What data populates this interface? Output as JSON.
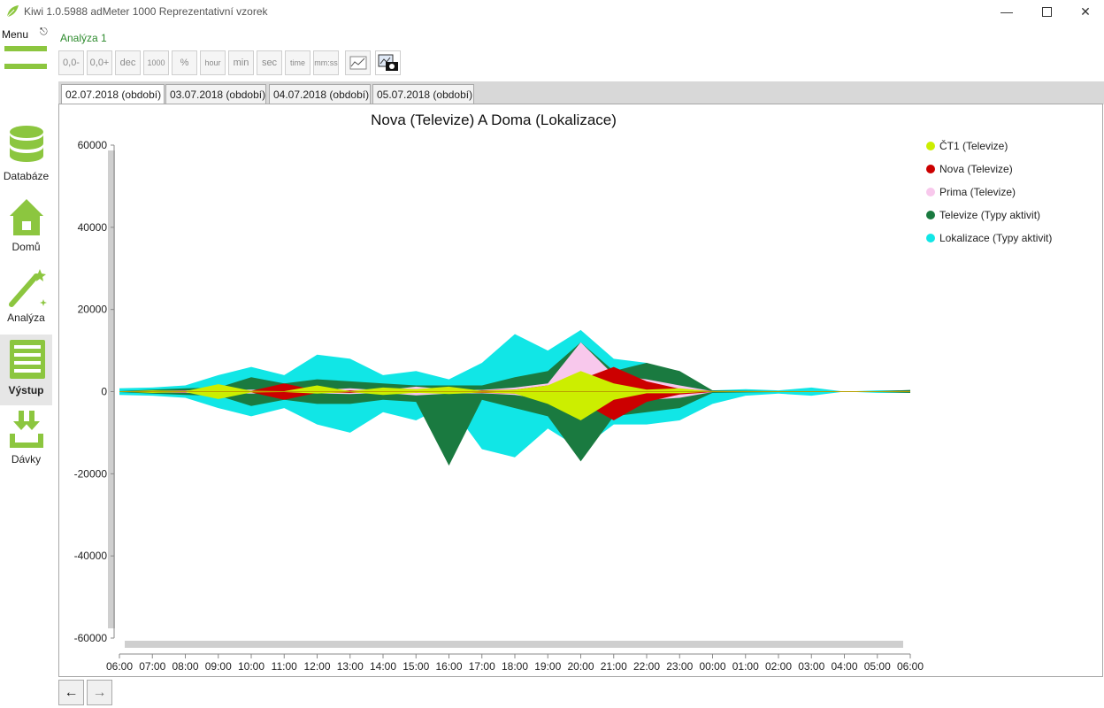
{
  "window": {
    "title": "Kiwi 1.0.5988  adMeter 1000 Reprezentativní vzorek"
  },
  "sidebar": {
    "menu_label": "Menu",
    "items": [
      {
        "label": "Databáze",
        "icon": "database-icon"
      },
      {
        "label": "Domů",
        "icon": "home-icon"
      },
      {
        "label": "Analýza",
        "icon": "magic-wand-icon"
      },
      {
        "label": "Výstup",
        "icon": "output-table-icon",
        "active": true
      },
      {
        "label": "Dávky",
        "icon": "batch-download-icon"
      }
    ],
    "accent_color": "#8cc63f"
  },
  "analysis_title": "Analýza 1",
  "toolbar": {
    "buttons": [
      "0,0-",
      "0,0+",
      "dec",
      "1000",
      "%",
      "hour",
      "min",
      "sec",
      "time",
      "mm:ss"
    ],
    "chart_settings_icon": "chart-settings-icon",
    "screenshot_icon": "camera-icon"
  },
  "tabs": [
    "02.07.2018 (období)",
    "03.07.2018 (období)",
    "04.07.2018 (období)",
    "05.07.2018 (období)"
  ],
  "bottom_nav": {
    "back": "←",
    "forward": "→"
  },
  "chart_data": {
    "type": "area",
    "title": "Nova (Televize) A Doma (Lokalizace)",
    "xlabel": "",
    "ylabel": "",
    "ylim": [
      -60000,
      60000
    ],
    "y_ticks": [
      "60000",
      "40000",
      "20000",
      "0",
      "-20000",
      "-40000",
      "-60000"
    ],
    "categories": [
      "06:00",
      "07:00",
      "08:00",
      "09:00",
      "10:00",
      "11:00",
      "12:00",
      "13:00",
      "14:00",
      "15:00",
      "16:00",
      "17:00",
      "18:00",
      "19:00",
      "20:00",
      "21:00",
      "22:00",
      "23:00",
      "00:00",
      "01:00",
      "02:00",
      "03:00",
      "04:00",
      "05:00",
      "06:00"
    ],
    "legend_position": "top-right",
    "grid": false,
    "series": [
      {
        "name": "ČT1 (Televize)",
        "color": "#ccee00",
        "upper": [
          0,
          300,
          100,
          1800,
          200,
          100,
          1500,
          100,
          1000,
          600,
          1200,
          200,
          500,
          1500,
          5000,
          2000,
          500,
          800,
          0,
          0,
          0,
          0,
          0,
          0,
          0
        ],
        "lower": [
          0,
          -300,
          -100,
          -1800,
          -200,
          -100,
          -500,
          -100,
          -800,
          -300,
          -600,
          -200,
          -500,
          -3000,
          -7000,
          -2000,
          -400,
          -400,
          0,
          0,
          0,
          0,
          0,
          0,
          0
        ]
      },
      {
        "name": "Nova (Televize)",
        "color": "#cc0000",
        "upper": [
          0,
          200,
          200,
          400,
          200,
          2000,
          300,
          300,
          200,
          300,
          400,
          300,
          500,
          1500,
          3000,
          6000,
          2500,
          700,
          100,
          0,
          0,
          0,
          0,
          0,
          0
        ],
        "lower": [
          0,
          -200,
          -200,
          -400,
          -200,
          -2000,
          -300,
          -300,
          -200,
          -300,
          -400,
          -300,
          -500,
          -1800,
          -2500,
          -7000,
          -2500,
          -700,
          -100,
          0,
          0,
          0,
          0,
          0,
          0
        ]
      },
      {
        "name": "Prima (Televize)",
        "color": "#f8c8ec",
        "upper": [
          0,
          200,
          300,
          300,
          500,
          300,
          400,
          800,
          300,
          1200,
          500,
          400,
          1000,
          2000,
          12000,
          4000,
          3000,
          1500,
          100,
          0,
          0,
          0,
          0,
          0,
          0
        ],
        "lower": [
          0,
          -200,
          -300,
          -300,
          -500,
          -300,
          -400,
          -600,
          -300,
          -900,
          -500,
          -400,
          -800,
          -2000,
          -5000,
          -3000,
          -2000,
          -1500,
          -100,
          0,
          0,
          0,
          0,
          0,
          0
        ]
      },
      {
        "name": "Televize (Typy aktivit)",
        "color": "#1a7a40",
        "upper": [
          100,
          500,
          800,
          1000,
          3500,
          2000,
          3000,
          2500,
          2000,
          1500,
          1500,
          1500,
          3500,
          5000,
          12000,
          5000,
          7000,
          5000,
          300,
          200,
          100,
          100,
          0,
          100,
          400
        ],
        "lower": [
          -100,
          -500,
          -800,
          -1000,
          -3500,
          -2000,
          -3000,
          -3000,
          -2000,
          -2500,
          -18000,
          -2000,
          -4000,
          -6000,
          -17000,
          -6000,
          -5000,
          -4000,
          -300,
          -200,
          -100,
          -100,
          0,
          -100,
          -300
        ]
      },
      {
        "name": "Lokalizace (Typy aktivit)",
        "color": "#11e6e6",
        "upper": [
          800,
          1000,
          1500,
          4000,
          6000,
          4000,
          9000,
          8000,
          4000,
          5000,
          3000,
          7000,
          14000,
          10000,
          15000,
          8000,
          7000,
          4000,
          300,
          600,
          300,
          1000,
          0,
          300,
          300
        ],
        "lower": [
          -800,
          -1000,
          -1500,
          -4000,
          -6000,
          -4000,
          -8000,
          -10000,
          -5000,
          -7000,
          -3000,
          -14000,
          -16000,
          -9000,
          -14000,
          -8000,
          -8000,
          -7000,
          -3000,
          -1000,
          -500,
          -1000,
          0,
          -300,
          -300
        ]
      }
    ]
  }
}
